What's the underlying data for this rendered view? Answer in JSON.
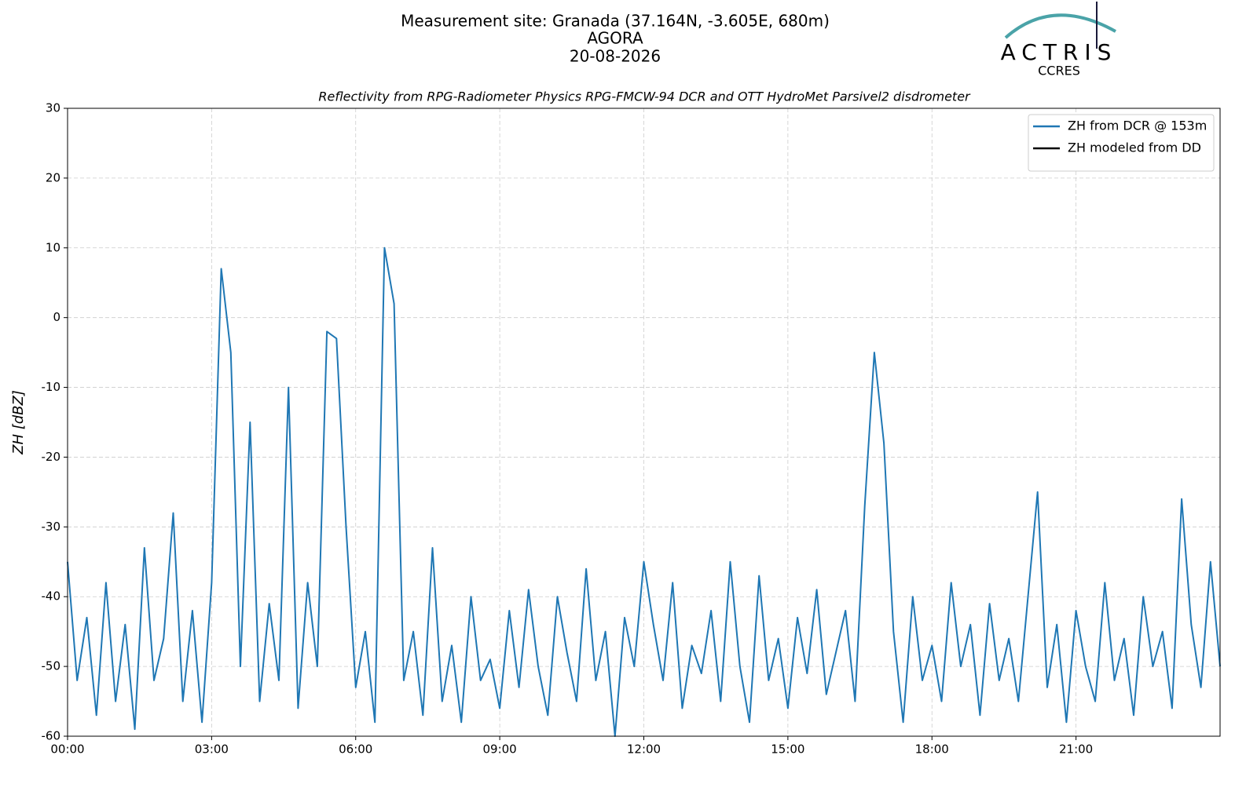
{
  "chart_data": {
    "type": "line",
    "title": [
      "Measurement site: Granada (37.164N, -3.605E, 680m)",
      "AGORA",
      "20-08-2026"
    ],
    "subtitle": "Reflectivity from RPG-Radiometer Physics RPG-FMCW-94 DCR and OTT HydroMet Parsivel2 disdrometer",
    "ylabel": "ZH [dBZ]",
    "logo": {
      "name": "ACTRIS",
      "sub": "CCRES"
    },
    "x": [
      0.0,
      0.2,
      0.4,
      0.6,
      0.8,
      1.0,
      1.2,
      1.4,
      1.6,
      1.8,
      2.0,
      2.2,
      2.4,
      2.6,
      2.8,
      3.0,
      3.2,
      3.4,
      3.6,
      3.8,
      4.0,
      4.2,
      4.4,
      4.6,
      4.8,
      5.0,
      5.2,
      5.4,
      5.6,
      5.8,
      6.0,
      6.2,
      6.4,
      6.6,
      6.8,
      7.0,
      7.2,
      7.4,
      7.6,
      7.8,
      8.0,
      8.2,
      8.4,
      8.6,
      8.8,
      9.0,
      9.2,
      9.4,
      9.6,
      9.8,
      10.0,
      10.2,
      10.4,
      10.6,
      10.8,
      11.0,
      11.2,
      11.4,
      11.6,
      11.8,
      12.0,
      12.2,
      12.4,
      12.6,
      12.8,
      13.0,
      13.2,
      13.4,
      13.6,
      13.8,
      14.0,
      14.2,
      14.4,
      14.6,
      14.8,
      15.0,
      15.2,
      15.4,
      15.6,
      15.8,
      16.0,
      16.2,
      16.4,
      16.6,
      16.8,
      17.0,
      17.2,
      17.4,
      17.6,
      17.8,
      18.0,
      18.2,
      18.4,
      18.6,
      18.8,
      19.0,
      19.2,
      19.4,
      19.6,
      19.8,
      20.0,
      20.2,
      20.4,
      20.6,
      20.8,
      21.0,
      21.2,
      21.4,
      21.6,
      21.8,
      22.0,
      22.2,
      22.4,
      22.6,
      22.8,
      23.0,
      23.2,
      23.4,
      23.6,
      23.8,
      24.0
    ],
    "series": [
      {
        "name": "ZH from DCR @ 153m",
        "color": "#1f77b4",
        "values": [
          -35,
          -52,
          -43,
          -57,
          -38,
          -55,
          -44,
          -59,
          -33,
          -52,
          -46,
          -28,
          -55,
          -42,
          -58,
          -38,
          7,
          -5,
          -50,
          -15,
          -55,
          -41,
          -52,
          -10,
          -56,
          -38,
          -50,
          -2,
          -3,
          -30,
          -53,
          -45,
          -58,
          10,
          2,
          -52,
          -45,
          -57,
          -33,
          -55,
          -47,
          -58,
          -40,
          -52,
          -49,
          -56,
          -42,
          -53,
          -39,
          -50,
          -57,
          -40,
          -48,
          -55,
          -36,
          -52,
          -45,
          -60,
          -43,
          -50,
          -35,
          -44,
          -52,
          -38,
          -56,
          -47,
          -51,
          -42,
          -55,
          -35,
          -50,
          -58,
          -37,
          -52,
          -46,
          -56,
          -43,
          -51,
          -39,
          -54,
          -48,
          -42,
          -55,
          -27,
          -5,
          -18,
          -45,
          -58,
          -40,
          -52,
          -47,
          -55,
          -38,
          -50,
          -44,
          -57,
          -41,
          -52,
          -46,
          -55,
          -40,
          -25,
          -53,
          -44,
          -58,
          -42,
          -50,
          -55,
          -38,
          -52,
          -46,
          -57,
          -40,
          -50,
          -45,
          -56,
          -26,
          -44,
          -53,
          -35,
          -50
        ]
      },
      {
        "name": "ZH modeled from DD",
        "color": "#000000",
        "values": [
          null,
          null,
          null,
          null,
          null,
          null,
          null,
          null,
          null,
          null,
          null,
          null,
          null,
          null,
          null,
          null,
          null,
          null,
          null,
          null,
          null,
          null,
          null,
          null,
          null,
          null,
          null,
          null,
          null,
          null,
          null,
          null,
          null,
          null,
          null,
          null,
          null,
          null,
          null,
          null,
          null,
          null,
          null,
          null,
          null,
          null,
          null,
          null,
          null,
          null,
          null,
          null,
          null,
          null,
          null,
          null,
          null,
          null,
          null,
          null,
          null,
          null,
          null,
          null,
          null,
          null,
          null,
          null,
          null,
          null,
          null,
          null,
          null,
          null,
          null,
          null,
          null,
          null,
          null,
          null,
          null,
          null,
          null,
          null,
          null,
          null,
          null,
          null,
          null,
          null,
          null,
          null,
          null,
          null,
          null,
          null,
          null,
          null,
          null,
          null,
          null,
          null,
          null,
          null,
          null,
          null,
          null,
          null,
          null,
          null,
          null,
          null,
          null,
          null,
          null,
          null,
          null,
          null,
          null,
          null,
          null
        ]
      }
    ],
    "xlim": [
      0,
      24
    ],
    "xticks": [
      {
        "value": 0,
        "label": "00:00"
      },
      {
        "value": 3,
        "label": "03:00"
      },
      {
        "value": 6,
        "label": "06:00"
      },
      {
        "value": 9,
        "label": "09:00"
      },
      {
        "value": 12,
        "label": "12:00"
      },
      {
        "value": 15,
        "label": "15:00"
      },
      {
        "value": 18,
        "label": "18:00"
      },
      {
        "value": 21,
        "label": "21:00"
      }
    ],
    "ylim": [
      -60,
      30
    ],
    "yticks": [
      -60,
      -50,
      -40,
      -30,
      -20,
      -10,
      0,
      10,
      20,
      30
    ],
    "grid": true,
    "legend": "upper right"
  }
}
